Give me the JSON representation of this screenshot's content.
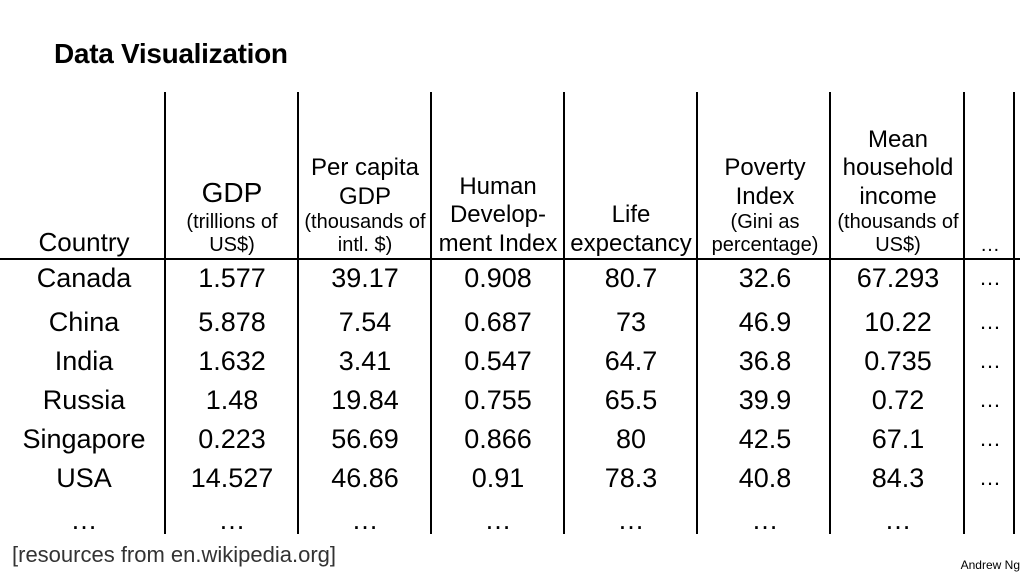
{
  "title": "Data Visualization",
  "columns": [
    {
      "main": "Country",
      "sub": ""
    },
    {
      "main": "GDP",
      "sub": "(trillions of US$)"
    },
    {
      "main": "Per capita GDP",
      "sub": "(thousands of intl. $)"
    },
    {
      "main": "Human Develop-ment Index",
      "sub": ""
    },
    {
      "main": "Life expectancy",
      "sub": ""
    },
    {
      "main": "Poverty Index",
      "sub": "(Gini as percentage)"
    },
    {
      "main": "Mean household income",
      "sub": "(thousands of US$)"
    },
    {
      "main": "…",
      "sub": ""
    }
  ],
  "rows": [
    [
      "Canada",
      "1.577",
      "39.17",
      "0.908",
      "80.7",
      "32.6",
      "67.293",
      "…"
    ],
    [
      "China",
      "5.878",
      "7.54",
      "0.687",
      "73",
      "46.9",
      "10.22",
      "…"
    ],
    [
      "India",
      "1.632",
      "3.41",
      "0.547",
      "64.7",
      "36.8",
      "0.735",
      "…"
    ],
    [
      "Russia",
      "1.48",
      "19.84",
      "0.755",
      "65.5",
      "39.9",
      "0.72",
      "…"
    ],
    [
      "Singapore",
      "0.223",
      "56.69",
      "0.866",
      "80",
      "42.5",
      "67.1",
      "…"
    ],
    [
      "USA",
      "14.527",
      "46.86",
      "0.91",
      "78.3",
      "40.8",
      "84.3",
      "…"
    ],
    [
      "…",
      "…",
      "…",
      "…",
      "…",
      "…",
      "…",
      ""
    ]
  ],
  "footer": "[resources from en.wikipedia.org]",
  "author": "Andrew Ng"
}
